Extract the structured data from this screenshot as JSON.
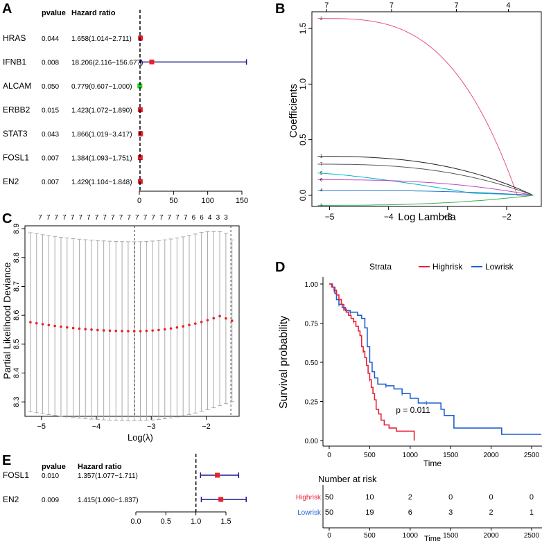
{
  "panels": {
    "A": {
      "letter": "A"
    },
    "B": {
      "letter": "B"
    },
    "C": {
      "letter": "C"
    },
    "D": {
      "letter": "D"
    },
    "E": {
      "letter": "E"
    }
  },
  "colors": {
    "red": "#e8202a",
    "green": "#22cc22",
    "navy": "#1a1a8c",
    "highrisk": "#e8203a",
    "lowrisk": "#1f5fcf",
    "grey": "#aaaaaa"
  },
  "chart_data": [
    {
      "id": "A",
      "type": "forest",
      "header_pvalue": "pvalue",
      "header_hr": "Hazard ratio",
      "xlim": [
        0,
        150
      ],
      "xticks": [
        "0",
        "50",
        "100",
        "150"
      ],
      "reference": 1,
      "rows": [
        {
          "gene": "HRAS",
          "pvalue": "0.044",
          "hr_text": "1.658(1.014−2.711)",
          "hr": 1.658,
          "lo": 1.014,
          "hi": 2.711,
          "color": "red"
        },
        {
          "gene": "IFNB1",
          "pvalue": "0.008",
          "hr_text": "18.206(2.116−156.677)",
          "hr": 18.206,
          "lo": 2.116,
          "hi": 156.677,
          "color": "red"
        },
        {
          "gene": "ALCAM",
          "pvalue": "0.050",
          "hr_text": "0.779(0.607−1.000)",
          "hr": 0.779,
          "lo": 0.607,
          "hi": 1.0,
          "color": "green"
        },
        {
          "gene": "ERBB2",
          "pvalue": "0.015",
          "hr_text": "1.423(1.072−1.890)",
          "hr": 1.423,
          "lo": 1.072,
          "hi": 1.89,
          "color": "red"
        },
        {
          "gene": "STAT3",
          "pvalue": "0.043",
          "hr_text": "1.866(1.019−3.417)",
          "hr": 1.866,
          "lo": 1.019,
          "hi": 3.417,
          "color": "red"
        },
        {
          "gene": "FOSL1",
          "pvalue": "0.007",
          "hr_text": "1.384(1.093−1.751)",
          "hr": 1.384,
          "lo": 1.093,
          "hi": 1.751,
          "color": "red"
        },
        {
          "gene": "EN2",
          "pvalue": "0.007",
          "hr_text": "1.429(1.104−1.848)",
          "hr": 1.429,
          "lo": 1.104,
          "hi": 1.848,
          "color": "red"
        }
      ]
    },
    {
      "id": "B",
      "type": "line",
      "title": "",
      "xlabel": "Log Lambda",
      "ylabel": "Coefficients",
      "xlim": [
        -5.3,
        -1.4
      ],
      "ylim": [
        -0.1,
        1.65
      ],
      "xticks": [
        {
          "v": -5,
          "label": "−5"
        },
        {
          "v": -4,
          "label": "−4"
        },
        {
          "v": -3,
          "label": "−3"
        },
        {
          "v": -2,
          "label": "−2"
        }
      ],
      "yticks": [
        {
          "v": 0.0,
          "label": "0.0"
        },
        {
          "v": 0.5,
          "label": "0.5"
        },
        {
          "v": 1.0,
          "label": "1.0"
        },
        {
          "v": 1.5,
          "label": "1.5"
        }
      ],
      "top_ticks": [
        {
          "v": -5.05,
          "label": "7"
        },
        {
          "v": -3.95,
          "label": "7"
        },
        {
          "v": -2.85,
          "label": "7"
        },
        {
          "v": -1.97,
          "label": "4"
        }
      ],
      "end_x": -1.55,
      "series": [
        {
          "name": "2",
          "color": "#e8547a",
          "start": 1.59,
          "kind": "convex",
          "zero_at": -1.82
        },
        {
          "name": "1",
          "color": "#222222",
          "start": 0.35,
          "kind": "smooth",
          "zero_at": -1.55
        },
        {
          "name": "7",
          "color": "#555555",
          "start": 0.28,
          "kind": "smooth",
          "zero_at": -1.55
        },
        {
          "name": "5",
          "color": "#00b7c7",
          "start": 0.2,
          "kind": "kink",
          "kink_x": -2.6,
          "kink_y": 0.02,
          "zero_at": -1.55
        },
        {
          "name": "6",
          "color": "#c447c4",
          "start": 0.14,
          "kind": "smooth",
          "zero_at": -1.55
        },
        {
          "name": "4",
          "color": "#1f77c7",
          "start": 0.045,
          "kind": "smooth",
          "zero_at": -1.55
        },
        {
          "name": "3",
          "color": "#33b055",
          "start": -0.09,
          "kind": "smooth",
          "zero_at": -1.55
        }
      ]
    },
    {
      "id": "C",
      "type": "scatter",
      "xlabel": "Log(λ)",
      "ylabel": "Partial Likelihood Deviance",
      "xlim": [
        -5.3,
        -1.4
      ],
      "ylim": [
        8.25,
        8.91
      ],
      "xticks": [
        {
          "v": -5,
          "label": "−5"
        },
        {
          "v": -4,
          "label": "−4"
        },
        {
          "v": -3,
          "label": "−3"
        },
        {
          "v": -2,
          "label": "−2"
        }
      ],
      "yticks": [
        {
          "v": 8.3,
          "label": "8.3"
        },
        {
          "v": 8.4,
          "label": "8.4"
        },
        {
          "v": 8.5,
          "label": "8.5"
        },
        {
          "v": 8.6,
          "label": "8.6"
        },
        {
          "v": 8.7,
          "label": "8.7"
        },
        {
          "v": 8.8,
          "label": "8.8"
        },
        {
          "v": 8.9,
          "label": "8.9"
        }
      ],
      "x_start": -5.2,
      "x_end": -1.53,
      "n_points": 34,
      "min_x": -3.3,
      "min_y": 8.545,
      "start_y": 8.576,
      "peak_x": -1.75,
      "peak_y": 8.597,
      "end_y": 8.581,
      "err_halfwidth": 0.31,
      "vlines": [
        -3.3,
        -1.55
      ],
      "top_counts": [
        "7",
        "7",
        "7",
        "7",
        "7",
        "7",
        "7",
        "7",
        "7",
        "7",
        "7",
        "7",
        "7",
        "7",
        "7",
        "7",
        "7",
        "7",
        "7",
        "6",
        "6",
        "4",
        "3",
        "3"
      ]
    },
    {
      "id": "D",
      "type": "km",
      "legend_title": "Strata",
      "legend_high": "Highrisk",
      "legend_low": "Lowrisk",
      "xlabel": "Time",
      "ylabel": "Survival probability",
      "pvalue_text": "p = 0.011",
      "xlim": [
        -60,
        2620
      ],
      "ylim": [
        0,
        1
      ],
      "xticks": [
        {
          "v": 0,
          "label": "0"
        },
        {
          "v": 500,
          "label": "500"
        },
        {
          "v": 1000,
          "label": "1000"
        },
        {
          "v": 1500,
          "label": "1500"
        },
        {
          "v": 2000,
          "label": "2000"
        },
        {
          "v": 2500,
          "label": "2500"
        }
      ],
      "yticks": [
        {
          "v": 0.0,
          "label": "0.00"
        },
        {
          "v": 0.25,
          "label": "0.25"
        },
        {
          "v": 0.5,
          "label": "0.50"
        },
        {
          "v": 0.75,
          "label": "0.75"
        },
        {
          "v": 1.0,
          "label": "1.00"
        }
      ],
      "high_curve": [
        [
          0,
          1.0
        ],
        [
          30,
          0.98
        ],
        [
          60,
          0.96
        ],
        [
          90,
          0.93
        ],
        [
          120,
          0.9
        ],
        [
          150,
          0.87
        ],
        [
          180,
          0.84
        ],
        [
          210,
          0.82
        ],
        [
          240,
          0.8
        ],
        [
          270,
          0.78
        ],
        [
          300,
          0.76
        ],
        [
          330,
          0.73
        ],
        [
          360,
          0.7
        ],
        [
          380,
          0.67
        ],
        [
          400,
          0.6
        ],
        [
          420,
          0.57
        ],
        [
          440,
          0.53
        ],
        [
          460,
          0.48
        ],
        [
          480,
          0.43
        ],
        [
          500,
          0.39
        ],
        [
          520,
          0.34
        ],
        [
          540,
          0.3
        ],
        [
          560,
          0.26
        ],
        [
          580,
          0.2
        ],
        [
          610,
          0.17
        ],
        [
          640,
          0.13
        ],
        [
          680,
          0.1
        ],
        [
          740,
          0.08
        ],
        [
          830,
          0.06
        ],
        [
          1050,
          0.06
        ]
      ],
      "high_end_drop": 1050,
      "low_curve": [
        [
          0,
          1.0
        ],
        [
          40,
          0.98
        ],
        [
          70,
          0.94
        ],
        [
          90,
          0.9
        ],
        [
          120,
          0.87
        ],
        [
          160,
          0.85
        ],
        [
          200,
          0.83
        ],
        [
          260,
          0.82
        ],
        [
          350,
          0.8
        ],
        [
          400,
          0.78
        ],
        [
          440,
          0.72
        ],
        [
          470,
          0.6
        ],
        [
          500,
          0.5
        ],
        [
          530,
          0.44
        ],
        [
          560,
          0.4
        ],
        [
          600,
          0.36
        ],
        [
          700,
          0.35
        ],
        [
          800,
          0.33
        ],
        [
          900,
          0.3
        ],
        [
          1000,
          0.27
        ],
        [
          1100,
          0.24
        ],
        [
          1350,
          0.24
        ],
        [
          1380,
          0.2
        ],
        [
          1420,
          0.16
        ],
        [
          1540,
          0.08
        ],
        [
          2120,
          0.08
        ],
        [
          2130,
          0.04
        ],
        [
          2620,
          0.04
        ]
      ],
      "risk_title": "Number at risk",
      "risk_high_label": "Highrisk",
      "risk_low_label": "Lowrisk",
      "risk_high": [
        "50",
        "10",
        "2",
        "0",
        "0",
        "0"
      ],
      "risk_low": [
        "50",
        "19",
        "6",
        "3",
        "2",
        "1"
      ],
      "risk_xlabel": "Time"
    },
    {
      "id": "E",
      "type": "forest",
      "header_pvalue": "pvalue",
      "header_hr": "Hazard ratio",
      "xlim": [
        0,
        1.8
      ],
      "xticks": [
        "0.0",
        "0.5",
        "1.0",
        "1.5"
      ],
      "reference": 1,
      "rows": [
        {
          "gene": "FOSL1",
          "pvalue": "0.010",
          "hr_text": "1.357(1.077−1.711)",
          "hr": 1.357,
          "lo": 1.077,
          "hi": 1.711,
          "color": "red"
        },
        {
          "gene": "EN2",
          "pvalue": "0.009",
          "hr_text": "1.415(1.090−1.837)",
          "hr": 1.415,
          "lo": 1.09,
          "hi": 1.837,
          "color": "red"
        }
      ]
    }
  ]
}
